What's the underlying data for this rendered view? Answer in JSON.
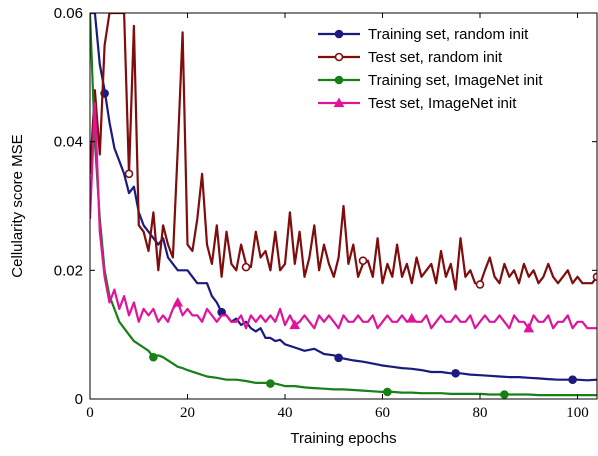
{
  "chart_data": {
    "type": "line",
    "title": "",
    "xlabel": "Training epochs",
    "ylabel": "Cellularity score MSE",
    "xlim": [
      0,
      104
    ],
    "ylim": [
      0,
      0.06
    ],
    "xticks": [
      0,
      20,
      40,
      60,
      80,
      100
    ],
    "xtick_labels": [
      "0",
      "20",
      "40",
      "60",
      "80",
      "100"
    ],
    "yticks": [
      0,
      0.02,
      0.04,
      0.06
    ],
    "ytick_labels": [
      "0",
      "0.02",
      "0.04",
      "0.06"
    ],
    "grid": false,
    "legend_position": "top-right",
    "series": [
      {
        "name": "Training set, random init",
        "color": "#1a1a80",
        "marker": "filled-circle",
        "x": [
          0,
          1,
          2,
          3,
          4,
          5,
          6,
          7,
          8,
          9,
          10,
          11,
          12,
          13,
          14,
          15,
          16,
          17,
          18,
          19,
          20,
          21,
          22,
          23,
          24,
          25,
          26,
          27,
          28,
          29,
          30,
          31,
          32,
          33,
          34,
          35,
          36,
          37,
          38,
          39,
          40,
          42,
          44,
          46,
          48,
          50,
          52,
          54,
          56,
          58,
          60,
          62,
          64,
          66,
          68,
          70,
          72,
          74,
          76,
          78,
          80,
          82,
          84,
          86,
          88,
          90,
          92,
          94,
          96,
          98,
          100,
          102,
          104
        ],
        "y": [
          0.06,
          0.06,
          0.052,
          0.048,
          0.043,
          0.039,
          0.037,
          0.035,
          0.032,
          0.033,
          0.029,
          0.027,
          0.026,
          0.025,
          0.024,
          0.025,
          0.022,
          0.021,
          0.02,
          0.02,
          0.02,
          0.019,
          0.018,
          0.018,
          0.018,
          0.016,
          0.015,
          0.0135,
          0.013,
          0.012,
          0.0125,
          0.0115,
          0.012,
          0.011,
          0.0105,
          0.011,
          0.0095,
          0.0095,
          0.009,
          0.0092,
          0.0085,
          0.008,
          0.0075,
          0.0078,
          0.007,
          0.0068,
          0.0063,
          0.006,
          0.0058,
          0.0055,
          0.0052,
          0.005,
          0.0048,
          0.0047,
          0.0045,
          0.0042,
          0.0042,
          0.004,
          0.004,
          0.0038,
          0.0037,
          0.0036,
          0.0035,
          0.0034,
          0.0034,
          0.0033,
          0.0032,
          0.0031,
          0.003,
          0.003,
          0.003,
          0.0029,
          0.003
        ],
        "markers_x": [
          3,
          27,
          51,
          75,
          99
        ],
        "markers_y": [
          0.0475,
          0.0135,
          0.0064,
          0.004,
          0.003
        ]
      },
      {
        "name": "Test set, random init",
        "color": "#7f0d0d",
        "marker": "open-circle",
        "x": [
          0,
          1,
          2,
          3,
          4,
          5,
          6,
          7,
          8,
          9,
          10,
          11,
          12,
          13,
          14,
          15,
          16,
          17,
          18,
          19,
          20,
          21,
          22,
          23,
          24,
          25,
          26,
          27,
          28,
          29,
          30,
          31,
          32,
          33,
          34,
          35,
          36,
          37,
          38,
          39,
          40,
          41,
          42,
          43,
          44,
          45,
          46,
          47,
          48,
          49,
          50,
          51,
          52,
          53,
          54,
          55,
          56,
          57,
          58,
          59,
          60,
          61,
          62,
          63,
          64,
          65,
          66,
          67,
          68,
          69,
          70,
          71,
          72,
          73,
          74,
          75,
          76,
          77,
          78,
          79,
          80,
          81,
          82,
          83,
          84,
          85,
          86,
          87,
          88,
          89,
          90,
          91,
          92,
          93,
          94,
          95,
          96,
          97,
          98,
          99,
          100,
          101,
          102,
          103,
          104
        ],
        "y": [
          0.035,
          0.048,
          0.038,
          0.055,
          0.06,
          0.06,
          0.06,
          0.06,
          0.035,
          0.058,
          0.027,
          0.026,
          0.023,
          0.029,
          0.02,
          0.027,
          0.024,
          0.022,
          0.039,
          0.057,
          0.024,
          0.023,
          0.028,
          0.035,
          0.024,
          0.021,
          0.027,
          0.019,
          0.026,
          0.021,
          0.02,
          0.024,
          0.021,
          0.0205,
          0.026,
          0.022,
          0.023,
          0.02,
          0.026,
          0.02,
          0.021,
          0.029,
          0.021,
          0.026,
          0.019,
          0.022,
          0.027,
          0.02,
          0.024,
          0.021,
          0.019,
          0.022,
          0.03,
          0.021,
          0.024,
          0.019,
          0.021,
          0.0215,
          0.019,
          0.025,
          0.018,
          0.021,
          0.019,
          0.024,
          0.019,
          0.021,
          0.018,
          0.022,
          0.019,
          0.02,
          0.021,
          0.018,
          0.023,
          0.019,
          0.021,
          0.017,
          0.025,
          0.019,
          0.02,
          0.018,
          0.0178,
          0.02,
          0.022,
          0.019,
          0.018,
          0.021,
          0.019,
          0.02,
          0.018,
          0.021,
          0.019,
          0.02,
          0.018,
          0.019,
          0.021,
          0.019,
          0.018,
          0.019,
          0.02,
          0.018,
          0.019,
          0.018,
          0.018,
          0.018,
          0.019
        ],
        "markers_x": [
          8,
          32,
          56,
          80,
          104
        ],
        "markers_y": [
          0.035,
          0.0205,
          0.0215,
          0.0178,
          0.019
        ]
      },
      {
        "name": "Training set, ImageNet init",
        "color": "#178017",
        "marker": "filled-circle",
        "x": [
          0,
          1,
          2,
          3,
          4,
          5,
          6,
          7,
          8,
          9,
          10,
          11,
          12,
          13,
          14,
          15,
          16,
          17,
          18,
          19,
          20,
          22,
          24,
          26,
          28,
          30,
          32,
          34,
          36,
          38,
          40,
          42,
          44,
          46,
          48,
          50,
          52,
          54,
          56,
          58,
          60,
          62,
          64,
          66,
          68,
          70,
          72,
          74,
          76,
          78,
          80,
          82,
          84,
          86,
          88,
          90,
          92,
          94,
          96,
          98,
          100,
          102,
          104
        ],
        "y": [
          0.06,
          0.04,
          0.028,
          0.02,
          0.016,
          0.014,
          0.012,
          0.011,
          0.01,
          0.009,
          0.0085,
          0.008,
          0.0075,
          0.0065,
          0.0068,
          0.0065,
          0.006,
          0.0055,
          0.005,
          0.0048,
          0.0045,
          0.004,
          0.0035,
          0.0033,
          0.003,
          0.003,
          0.0028,
          0.0025,
          0.0025,
          0.0024,
          0.002,
          0.002,
          0.0018,
          0.0017,
          0.0016,
          0.0015,
          0.0015,
          0.0014,
          0.0013,
          0.0012,
          0.0011,
          0.0011,
          0.001,
          0.001,
          0.0009,
          0.0009,
          0.0009,
          0.0008,
          0.0008,
          0.0008,
          0.0008,
          0.0007,
          0.0007,
          0.0007,
          0.0007,
          0.0007,
          0.0006,
          0.0006,
          0.0006,
          0.0006,
          0.0006,
          0.0006,
          0.0006
        ],
        "markers_x": [
          13,
          37,
          61,
          85
        ],
        "markers_y": [
          0.0065,
          0.0024,
          0.0011,
          0.0007
        ]
      },
      {
        "name": "Test set, ImageNet init",
        "color": "#e0149b",
        "marker": "filled-triangle",
        "x": [
          0,
          1,
          2,
          3,
          4,
          5,
          6,
          7,
          8,
          9,
          10,
          11,
          12,
          13,
          14,
          15,
          16,
          17,
          18,
          19,
          20,
          21,
          22,
          23,
          24,
          25,
          26,
          27,
          28,
          29,
          30,
          31,
          32,
          33,
          34,
          35,
          36,
          37,
          38,
          39,
          40,
          41,
          42,
          43,
          44,
          45,
          46,
          47,
          48,
          49,
          50,
          51,
          52,
          53,
          54,
          55,
          56,
          57,
          58,
          59,
          60,
          61,
          62,
          63,
          64,
          65,
          66,
          67,
          68,
          69,
          70,
          71,
          72,
          73,
          74,
          75,
          76,
          77,
          78,
          79,
          80,
          81,
          82,
          83,
          84,
          85,
          86,
          87,
          88,
          89,
          90,
          91,
          92,
          93,
          94,
          95,
          96,
          97,
          98,
          99,
          100,
          101,
          102,
          103,
          104
        ],
        "y": [
          0.028,
          0.046,
          0.026,
          0.019,
          0.015,
          0.017,
          0.014,
          0.016,
          0.013,
          0.015,
          0.012,
          0.014,
          0.013,
          0.014,
          0.012,
          0.013,
          0.012,
          0.014,
          0.015,
          0.013,
          0.014,
          0.013,
          0.013,
          0.012,
          0.014,
          0.013,
          0.012,
          0.013,
          0.013,
          0.012,
          0.012,
          0.013,
          0.011,
          0.013,
          0.012,
          0.013,
          0.012,
          0.013,
          0.012,
          0.014,
          0.0115,
          0.013,
          0.0115,
          0.012,
          0.013,
          0.012,
          0.011,
          0.013,
          0.012,
          0.013,
          0.012,
          0.011,
          0.013,
          0.012,
          0.012,
          0.013,
          0.012,
          0.012,
          0.013,
          0.011,
          0.012,
          0.013,
          0.012,
          0.012,
          0.013,
          0.012,
          0.0125,
          0.012,
          0.012,
          0.013,
          0.011,
          0.012,
          0.013,
          0.012,
          0.012,
          0.013,
          0.012,
          0.012,
          0.013,
          0.011,
          0.012,
          0.013,
          0.012,
          0.012,
          0.013,
          0.012,
          0.011,
          0.013,
          0.012,
          0.012,
          0.011,
          0.013,
          0.012,
          0.012,
          0.013,
          0.011,
          0.012,
          0.012,
          0.013,
          0.011,
          0.012,
          0.012,
          0.011,
          0.011,
          0.011
        ],
        "markers_x": [
          18,
          42,
          66,
          90
        ],
        "markers_y": [
          0.015,
          0.0115,
          0.0125,
          0.011
        ]
      }
    ]
  }
}
